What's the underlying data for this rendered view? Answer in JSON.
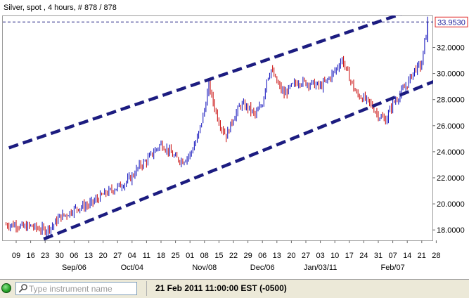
{
  "chart_data": {
    "type": "line",
    "style": "candlestick",
    "title": "Silver, spot , 4 hours, # 878 / 878",
    "last_price": "33.9530",
    "y_ticks": [
      "18.0000",
      "20.0000",
      "22.0000",
      "24.0000",
      "26.0000",
      "28.0000",
      "30.0000",
      "32.0000"
    ],
    "ylim": [
      17.2,
      34.4
    ],
    "x_ticks": [
      "09",
      "16",
      "23",
      "30",
      "06",
      "13",
      "20",
      "27",
      "04",
      "11",
      "18",
      "25",
      "01",
      "08",
      "15",
      "22",
      "29",
      "06",
      "13",
      "20",
      "27",
      "03",
      "10",
      "17",
      "24",
      "31",
      "07",
      "14",
      "21",
      "28"
    ],
    "x_month_labels": [
      {
        "label": "Sep/06",
        "tick_index": 4
      },
      {
        "label": "Oct/04",
        "tick_index": 8
      },
      {
        "label": "Nov/08",
        "tick_index": 13
      },
      {
        "label": "Dec/06",
        "tick_index": 17
      },
      {
        "label": "Jan/03/11",
        "tick_index": 21
      },
      {
        "label": "Feb/07",
        "tick_index": 26
      }
    ],
    "series": [
      {
        "x_tick_index": [
          0,
          0.5,
          1,
          1.5,
          2,
          2.5,
          3,
          3.5,
          4,
          4.5,
          5,
          5.5,
          6,
          6.5,
          7,
          7.5,
          8,
          8.5,
          9,
          9.5,
          10,
          10.5,
          11,
          11.5,
          12,
          12.5,
          13,
          13.3,
          13.6,
          14,
          14.5,
          15,
          15.5,
          16,
          16.5,
          17,
          17.3,
          17.6,
          18,
          18.5,
          19,
          19.5,
          20,
          20.5,
          21,
          21.5,
          22,
          22.5,
          23,
          23.5,
          24,
          24.5,
          25,
          25.5,
          26,
          26.5,
          27,
          27.5,
          28,
          28.2,
          28.4
        ],
        "values": [
          18.4,
          18.2,
          18.3,
          18.1,
          18.0,
          18.3,
          19.0,
          19.2,
          19.6,
          19.8,
          19.9,
          20.3,
          20.7,
          21.0,
          21.3,
          21.6,
          22.1,
          22.9,
          23.3,
          24.0,
          24.6,
          24.1,
          23.5,
          23.3,
          23.8,
          25.0,
          27.2,
          29.1,
          27.8,
          26.3,
          25.2,
          26.6,
          27.6,
          27.4,
          26.8,
          27.7,
          29.6,
          30.3,
          29.3,
          28.4,
          29.0,
          29.4,
          29.3,
          29.2,
          29.0,
          29.5,
          30.2,
          31.1,
          29.7,
          28.4,
          28.1,
          27.6,
          26.8,
          26.4,
          27.7,
          28.4,
          29.2,
          30.3,
          30.7,
          32.4,
          33.95
        ]
      }
    ],
    "channel_lines": [
      {
        "name": "upper",
        "x_tick_index": [
          -0.5,
          29.3
        ],
        "values": [
          24.3,
          35.6
        ]
      },
      {
        "name": "lower",
        "x_tick_index": [
          1.9,
          29.3
        ],
        "values": [
          17.3,
          29.6
        ]
      }
    ],
    "colors": {
      "up": "#1d1dbf",
      "down": "#cc1818",
      "channel": "#1c1c80",
      "last_price_box": "#e02020",
      "grid": "#e6e6e6"
    },
    "grid": false,
    "legend": "none"
  },
  "status_bar": {
    "search_placeholder": "Type instrument name",
    "timestamp": "21 Feb 2011 11:00:00  EST (-0500)"
  },
  "icons": {
    "status": "connection-status-icon",
    "search": "search-icon"
  }
}
